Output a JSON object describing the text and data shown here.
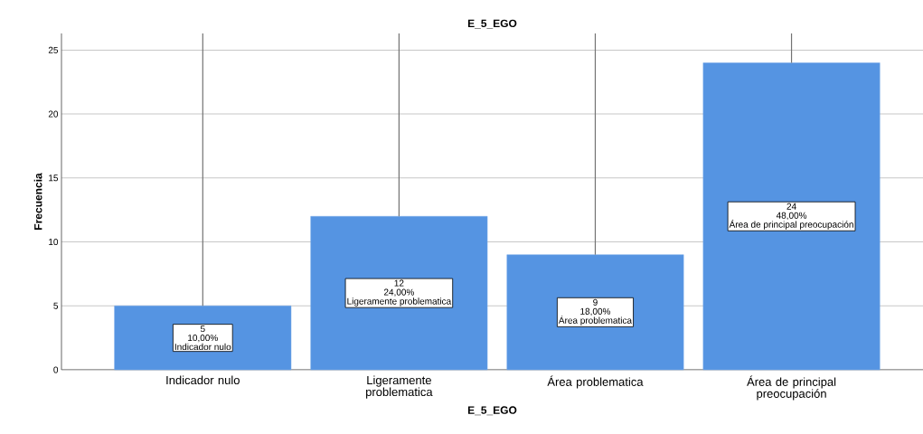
{
  "chart_data": {
    "type": "bar",
    "title": "E_5_EGO",
    "xlabel": "E_5_EGO",
    "ylabel": "Frecuencia",
    "categories": [
      "Indicador nulo",
      "Ligeramente problematica",
      "Área problematica",
      "Área de principal preocupación"
    ],
    "values": [
      5,
      12,
      9,
      24
    ],
    "color": "#5594e2",
    "errors": [
      [
        5,
        26.3
      ],
      [
        12,
        26.3
      ],
      [
        9,
        26.3
      ],
      [
        24,
        26.3
      ]
    ],
    "value_labels": [
      "5",
      "12",
      "9",
      "24"
    ],
    "annotations": [
      "10,00%",
      "24,00%",
      "18,00%",
      "48,00%",
      "Indicador nulo",
      "Ligeramente problematica",
      "Área problematica",
      "Área de principal preocupación"
    ],
    "ylim": [
      0,
      26.3
    ],
    "yticks": [
      0,
      5,
      10,
      15,
      20,
      25
    ],
    "grid": "y"
  }
}
